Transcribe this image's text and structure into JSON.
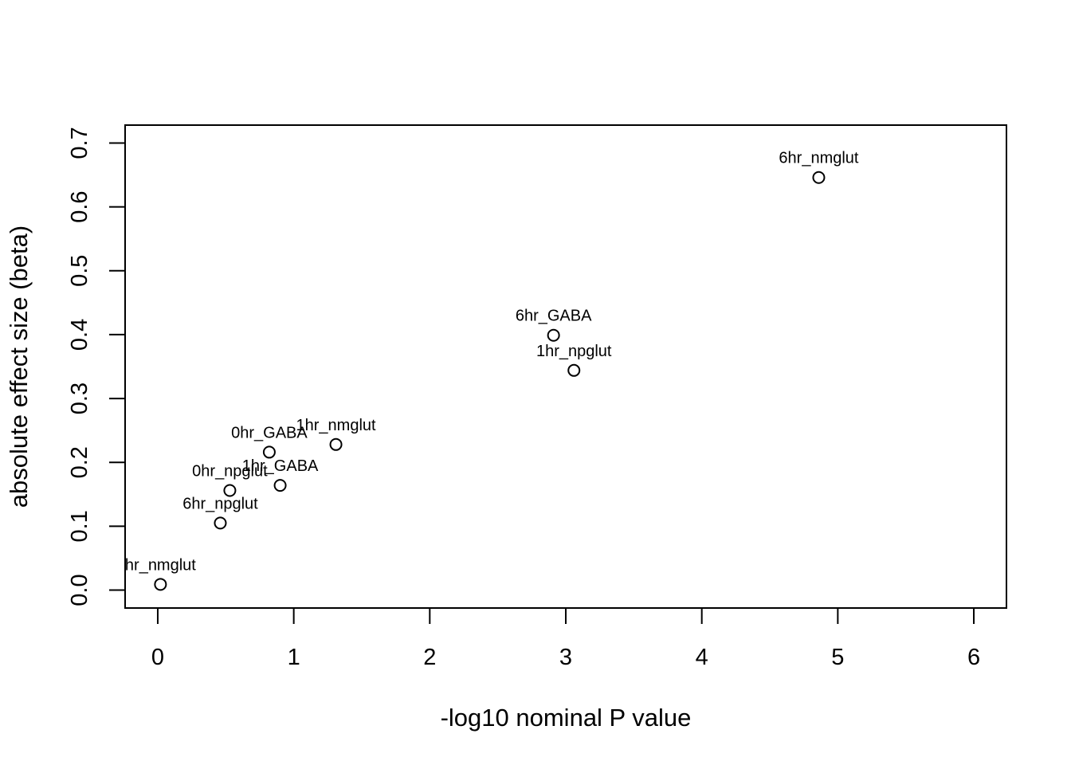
{
  "chart_data": {
    "type": "scatter",
    "xlabel": "-log10 nominal P value",
    "ylabel": "absolute effect size (beta)",
    "xlim": [
      -0.24,
      6.24
    ],
    "ylim": [
      -0.028,
      0.728
    ],
    "x_ticks": [
      0,
      1,
      2,
      3,
      4,
      5,
      6
    ],
    "x_tick_labels": [
      "0",
      "1",
      "2",
      "3",
      "4",
      "5",
      "6"
    ],
    "y_ticks": [
      0.0,
      0.1,
      0.2,
      0.3,
      0.4,
      0.5,
      0.6,
      0.7
    ],
    "y_tick_labels": [
      "0.0",
      "0.1",
      "0.2",
      "0.3",
      "0.4",
      "0.5",
      "0.6",
      "0.7"
    ],
    "grid": false,
    "marker": "open-circle",
    "points": [
      {
        "label": "hr_nmglut",
        "x": 0.02,
        "y": 0.009
      },
      {
        "label": "6hr_npglut",
        "x": 0.46,
        "y": 0.105
      },
      {
        "label": "0hr_npglut",
        "x": 0.53,
        "y": 0.156
      },
      {
        "label": "0hr_GABA",
        "x": 0.82,
        "y": 0.216
      },
      {
        "label": "1hr_GABA",
        "x": 0.9,
        "y": 0.164
      },
      {
        "label": "1hr_nmglut",
        "x": 1.31,
        "y": 0.228
      },
      {
        "label": "6hr_GABA",
        "x": 2.91,
        "y": 0.399
      },
      {
        "label": "1hr_npglut",
        "x": 3.06,
        "y": 0.344
      },
      {
        "label": "6hr_nmglut",
        "x": 4.86,
        "y": 0.646
      }
    ]
  }
}
